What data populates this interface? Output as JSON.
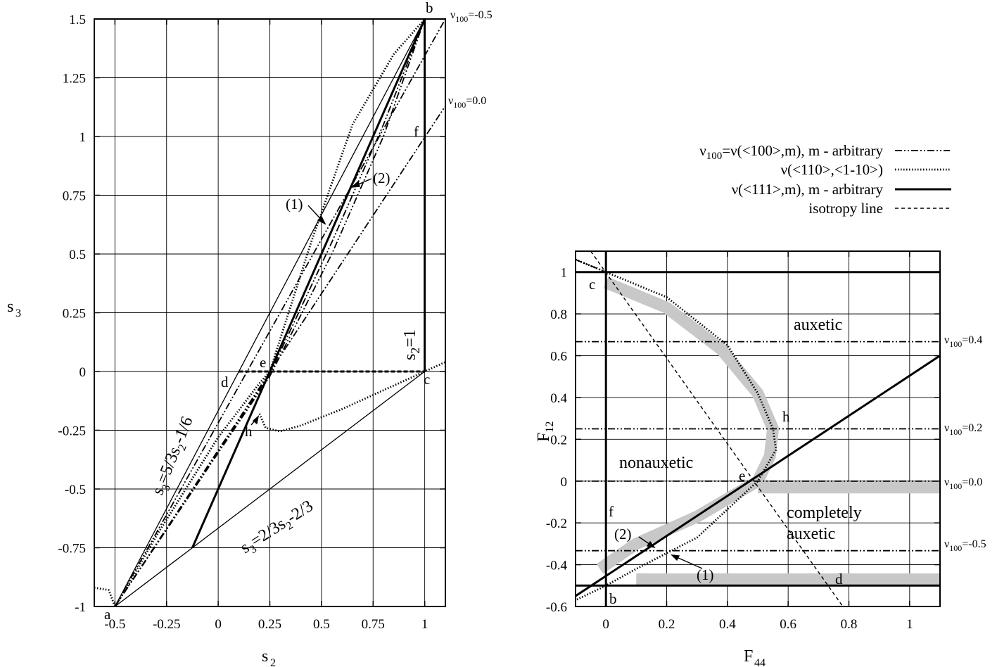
{
  "legend": {
    "entries": [
      {
        "label": "ν100=ν(<100>,m), m - arbitrary",
        "style": "dash-dot-dot"
      },
      {
        "label": "ν(<110>,<1-10>)",
        "style": "dotted"
      },
      {
        "label": "ν(<111>,m), m - arbitrary",
        "style": "solid-thick"
      },
      {
        "label": "isotropy line",
        "style": "dashed"
      }
    ]
  },
  "chart_data": [
    {
      "type": "line",
      "xlabel": "s2",
      "ylabel": "s3",
      "xlim": [
        -0.6,
        1.1
      ],
      "ylim": [
        -1,
        1.5
      ],
      "xticks": [
        -0.5,
        -0.25,
        0,
        0.25,
        0.5,
        0.75,
        1
      ],
      "xtick_labels": [
        "-0.5",
        "-0.25",
        "0",
        "0.25",
        "0.5",
        "0.75",
        "1"
      ],
      "yticks": [
        -1,
        -0.75,
        -0.5,
        -0.25,
        0,
        0.25,
        0.5,
        0.75,
        1,
        1.25,
        1.5
      ],
      "ytick_labels": [
        "-1",
        "-0.75",
        "-0.5",
        "-0.25",
        "0",
        "0.25",
        "0.5",
        "0.75",
        "1",
        "1.25",
        "1.5"
      ],
      "grid": true,
      "series": [
        {
          "label": "s3=5/3s2-1/6",
          "style": "thin",
          "x": [
            -0.5,
            1.0
          ],
          "y": [
            -1.0,
            1.5
          ]
        },
        {
          "label": "s3=2/3s2-2/3",
          "style": "thin",
          "x": [
            -0.5,
            1.0
          ],
          "y": [
            -1.0,
            0.0
          ]
        },
        {
          "label": "s2=1",
          "style": "solid-thick",
          "x": [
            1.0,
            1.0
          ],
          "y": [
            0.0,
            1.5
          ]
        },
        {
          "style": "solid-thick",
          "x": [
            -0.125,
            1.0
          ],
          "y": [
            -0.75,
            1.5
          ]
        },
        {
          "style": "dashed-thick",
          "x": [
            0.1,
            1.0
          ],
          "y": [
            0.0,
            0.0
          ]
        },
        {
          "label": "ν100=-0.5",
          "style": "dash-dot-dot",
          "x": [
            -0.5,
            1.1
          ],
          "y": [
            -1.0,
            1.5
          ]
        },
        {
          "label": "ν100=0.0",
          "style": "dash-dot-dot",
          "x": [
            -0.5,
            1.1
          ],
          "y": [
            -1.0,
            1.13
          ]
        },
        {
          "style": "dash-dot-dot",
          "x": [
            -0.5,
            0.25,
            0.55,
            0.8,
            1.0
          ],
          "y": [
            -1.0,
            -0.02,
            0.5,
            1.0,
            1.5
          ]
        },
        {
          "style": "dash-dot-dot",
          "x": [
            -0.5,
            0.25,
            0.55,
            0.8,
            1.0
          ],
          "y": [
            -1.0,
            -0.01,
            0.55,
            1.05,
            1.5
          ]
        },
        {
          "style": "dotted",
          "x": [
            -0.6,
            -0.53,
            -0.5,
            -0.45,
            -0.3,
            0.0,
            0.2,
            0.25,
            0.45,
            0.65,
            0.85,
            1.0
          ],
          "y": [
            -0.92,
            -0.93,
            -1.0,
            -0.93,
            -0.7,
            -0.28,
            -0.05,
            0.0,
            0.55,
            1.05,
            1.35,
            1.5
          ]
        },
        {
          "style": "dotted",
          "x": [
            0.2,
            0.23,
            0.3,
            0.4,
            0.6,
            0.8,
            1.0,
            1.1
          ],
          "y": [
            -0.18,
            -0.24,
            -0.255,
            -0.23,
            -0.16,
            -0.08,
            0.0,
            0.04
          ]
        }
      ],
      "annotations": [
        "a",
        "b",
        "c",
        "d",
        "e",
        "f",
        "h",
        "(1)",
        "(2)",
        "ν100=-0.5",
        "ν100=0.0",
        "s3=5/3s2-1/6",
        "s3=2/3s2-2/3",
        "s2=1"
      ]
    },
    {
      "type": "line",
      "xlabel": "F44",
      "ylabel": "F12",
      "xlim": [
        -0.1,
        1.1
      ],
      "ylim": [
        -0.6,
        1.1
      ],
      "xticks": [
        0,
        0.2,
        0.4,
        0.6,
        0.8,
        1
      ],
      "xtick_labels": [
        "0",
        "0.2",
        "0.4",
        "0.6",
        "0.8",
        "1"
      ],
      "yticks": [
        -0.6,
        -0.4,
        -0.2,
        0,
        0.2,
        0.4,
        0.6,
        0.8,
        1
      ],
      "ytick_labels": [
        "-0.6",
        "-0.4",
        "-0.2",
        "0",
        "0.2",
        "0.4",
        "0.6",
        "0.8",
        "1"
      ],
      "grid": true,
      "series": [
        {
          "style": "solid-thick",
          "x": [
            -0.1,
            1.1
          ],
          "y": [
            1.0,
            1.0
          ]
        },
        {
          "style": "solid-thick",
          "x": [
            -0.1,
            1.1
          ],
          "y": [
            -0.5,
            -0.5
          ]
        },
        {
          "style": "solid-thick",
          "x": [
            0.0,
            0.0
          ],
          "y": [
            -0.6,
            1.1
          ]
        },
        {
          "style": "solid-thick",
          "x": [
            -0.1,
            1.1
          ],
          "y": [
            -0.55,
            0.6
          ]
        },
        {
          "style": "dashed",
          "x": [
            -0.05,
            0.78
          ],
          "y": [
            1.1,
            -0.6
          ]
        },
        {
          "label": "ν100=0.4",
          "style": "dash-dot-dot",
          "x": [
            -0.1,
            1.1
          ],
          "y": [
            0.667,
            0.667
          ]
        },
        {
          "label": "ν100=0.2",
          "style": "dash-dot-dot",
          "x": [
            -0.1,
            1.1
          ],
          "y": [
            0.25,
            0.25
          ]
        },
        {
          "label": "ν100=0.0",
          "style": "dash-dot-dot",
          "x": [
            -0.1,
            1.1
          ],
          "y": [
            0.0,
            0.0
          ]
        },
        {
          "label": "ν100=-0.5",
          "style": "dash-dot-dot",
          "x": [
            -0.1,
            1.1
          ],
          "y": [
            -0.333,
            -0.333
          ]
        },
        {
          "style": "dash-dot-dot",
          "x": [
            -0.1,
            0.0
          ],
          "y": [
            1.06,
            1.0
          ]
        },
        {
          "style": "dotted",
          "x": [
            -0.1,
            0.0,
            0.2,
            0.4,
            0.5,
            0.55,
            0.56,
            0.5,
            0.3,
            0.1,
            0.0,
            -0.1
          ],
          "y": [
            1.06,
            1.0,
            0.88,
            0.65,
            0.42,
            0.25,
            0.15,
            0.0,
            -0.27,
            -0.42,
            -0.5,
            -0.57
          ]
        }
      ],
      "shaded_bands": [
        {
          "x": [
            0.0,
            0.2,
            0.38,
            0.5,
            0.55,
            0.54,
            0.5
          ],
          "y": [
            0.95,
            0.83,
            0.63,
            0.42,
            0.25,
            0.12,
            0.0
          ]
        },
        {
          "x": [
            0.5,
            1.1
          ],
          "y": [
            -0.03,
            -0.03
          ]
        },
        {
          "x": [
            0.5,
            0.3,
            0.1,
            -0.02
          ],
          "y": [
            0.0,
            -0.17,
            -0.3,
            -0.42
          ]
        },
        {
          "x": [
            0.1,
            1.1
          ],
          "y": [
            -0.47,
            -0.47
          ]
        }
      ],
      "annotations": [
        "auxetic",
        "nonauxetic",
        "completely",
        "auxetic",
        "b",
        "c",
        "d",
        "e",
        "f",
        "h",
        "(1)",
        "(2)",
        "ν100=0.4",
        "ν100=0.2",
        "ν100=0.0",
        "ν100=-0.5"
      ]
    }
  ]
}
